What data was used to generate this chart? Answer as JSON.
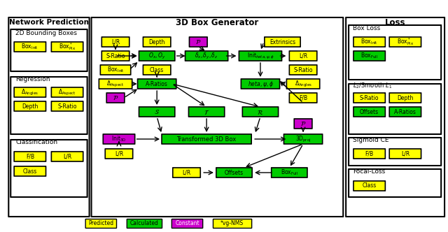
{
  "yellow": "#FFFF00",
  "green": "#00CC00",
  "magenta": "#CC00CC",
  "white": "#FFFFFF",
  "black": "#000000",
  "bg": "#FFFFFF",
  "border_color": "#222222",
  "legend_yellow_label": "Predicted",
  "legend_green_label": "Calculated",
  "legend_magenta_label": "Constant",
  "legend_star_label": "*vg-NMS"
}
